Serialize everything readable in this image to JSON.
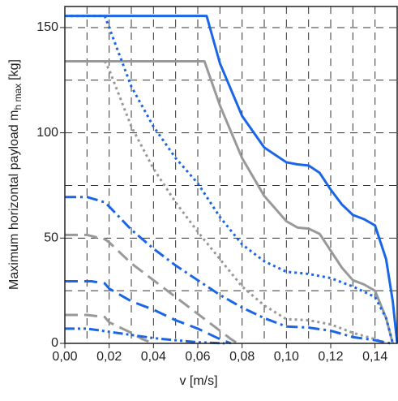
{
  "chart_data": {
    "type": "line",
    "xlabel": "v [m/s]",
    "ylabel": "Maximum horizontal payload m",
    "ylabel_sub": "h max",
    "ylabel_unit": "[kg]",
    "xlim": [
      0,
      0.15
    ],
    "ylim": [
      0,
      160
    ],
    "xticks": [
      {
        "value": 0,
        "label": "0,00"
      },
      {
        "value": 0.02,
        "label": "0,02"
      },
      {
        "value": 0.04,
        "label": "0,04"
      },
      {
        "value": 0.06,
        "label": "0,06"
      },
      {
        "value": 0.08,
        "label": "0,08"
      },
      {
        "value": 0.1,
        "label": "0,10"
      },
      {
        "value": 0.12,
        "label": "0,12"
      },
      {
        "value": 0.14,
        "label": "0,14"
      }
    ],
    "yticks": [
      0,
      50,
      100,
      150
    ],
    "xgrid": [
      0.01,
      0.02,
      0.03,
      0.04,
      0.05,
      0.06,
      0.07,
      0.08,
      0.09,
      0.1,
      0.11,
      0.12,
      0.13,
      0.14
    ],
    "ygrid": [
      25,
      50,
      75,
      100,
      125,
      150
    ],
    "series": [
      {
        "color": "#1a66e6",
        "dash": "solid",
        "x": [
          0,
          0.064,
          0.07,
          0.08,
          0.09,
          0.1,
          0.105,
          0.11,
          0.115,
          0.12,
          0.125,
          0.13,
          0.135,
          0.14,
          0.145,
          0.148,
          0.15
        ],
        "values": [
          155.5,
          155.5,
          133,
          108,
          93,
          86,
          85,
          84.5,
          81,
          73,
          66,
          61,
          59,
          56,
          40,
          20,
          0
        ]
      },
      {
        "color": "#999999",
        "dash": "solid",
        "x": [
          0,
          0.063,
          0.07,
          0.08,
          0.09,
          0.1,
          0.105,
          0.11,
          0.115,
          0.12,
          0.125,
          0.13,
          0.135,
          0.14,
          0.145,
          0.148
        ],
        "values": [
          134,
          134,
          113,
          88,
          70,
          58,
          55,
          54.5,
          52,
          44,
          36,
          30,
          28,
          25,
          12,
          0
        ]
      },
      {
        "color": "#1a66e6",
        "dash": "dotted",
        "x": [
          0,
          0.018,
          0.02,
          0.03,
          0.04,
          0.05,
          0.06,
          0.07,
          0.08,
          0.09,
          0.1,
          0.11,
          0.12,
          0.13,
          0.14,
          0.145,
          0.148
        ],
        "values": [
          155.5,
          155.5,
          150,
          122,
          103,
          88,
          76,
          60,
          47,
          39,
          34,
          33,
          31,
          27,
          22,
          12,
          0
        ]
      },
      {
        "color": "#999999",
        "dash": "dotted",
        "x": [
          0,
          0.018,
          0.02,
          0.03,
          0.04,
          0.05,
          0.06,
          0.07,
          0.08,
          0.09,
          0.1,
          0.11,
          0.12,
          0.13,
          0.14,
          0.145
        ],
        "values": [
          134,
          134,
          130,
          103,
          83,
          67,
          53,
          40,
          27,
          18,
          11.5,
          11,
          9,
          5,
          2,
          0
        ]
      },
      {
        "color": "#1a66e6",
        "dash": "dashdot",
        "x": [
          0,
          0.01,
          0.018,
          0.02,
          0.03,
          0.04,
          0.05,
          0.06,
          0.07,
          0.08,
          0.09,
          0.1,
          0.11,
          0.12,
          0.13,
          0.14,
          0.147
        ],
        "values": [
          69.5,
          69.5,
          67,
          65,
          54,
          45,
          37,
          30,
          23,
          17,
          12,
          8,
          7.5,
          6,
          3,
          1.5,
          0
        ]
      },
      {
        "color": "#999999",
        "dash": "dashed",
        "x": [
          0,
          0.01,
          0.018,
          0.02,
          0.03,
          0.04,
          0.05,
          0.06,
          0.07,
          0.075,
          0.078
        ],
        "values": [
          51.5,
          51.5,
          49.5,
          48,
          38,
          30,
          22,
          14,
          6,
          2,
          0
        ]
      },
      {
        "color": "#1a66e6",
        "dash": "dashed",
        "x": [
          0,
          0.012,
          0.018,
          0.02,
          0.03,
          0.04,
          0.05,
          0.06,
          0.07,
          0.075
        ],
        "values": [
          29.5,
          29.5,
          28.5,
          26,
          20,
          16,
          11,
          7,
          2,
          0
        ]
      },
      {
        "color": "#999999",
        "dash": "dashed",
        "x": [
          0,
          0.01,
          0.018,
          0.02,
          0.03,
          0.035,
          0.04
        ],
        "values": [
          13.5,
          13.5,
          12.5,
          10,
          5,
          2,
          0
        ]
      },
      {
        "color": "#1a66e6",
        "dash": "dashdotdot",
        "x": [
          0,
          0.01,
          0.02,
          0.03,
          0.04,
          0.05,
          0.06,
          0.072
        ],
        "values": [
          7,
          7,
          5.5,
          4,
          2.5,
          1.5,
          0.5,
          0
        ]
      }
    ]
  }
}
